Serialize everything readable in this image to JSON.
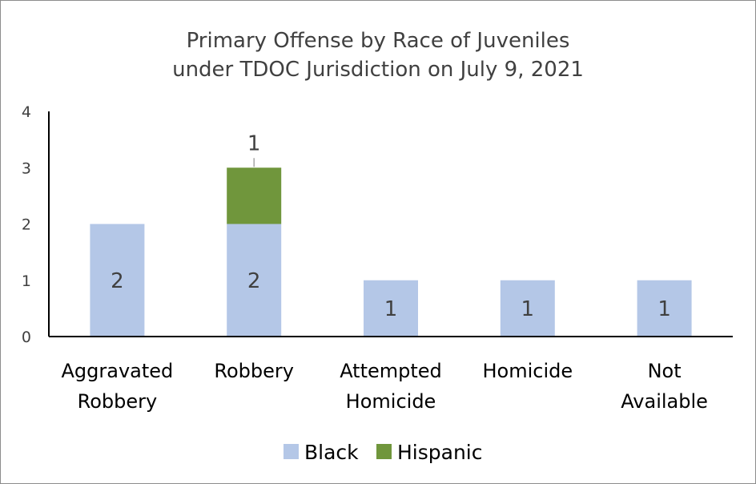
{
  "chart_data": {
    "type": "bar",
    "stacked": true,
    "title_lines": [
      "Primary Offense by Race of Juveniles",
      "under TDOC Jurisdiction on July 9, 2021"
    ],
    "categories": [
      [
        "Aggravated",
        "Robbery"
      ],
      [
        "Robbery"
      ],
      [
        "Attempted",
        "Homicide"
      ],
      [
        "Homicide"
      ],
      [
        "Not",
        "Available"
      ]
    ],
    "series": [
      {
        "name": "Black",
        "color": "#b4c7e7",
        "values": [
          2,
          2,
          1,
          1,
          1
        ]
      },
      {
        "name": "Hispanic",
        "color": "#70963c",
        "values": [
          0,
          1,
          0,
          0,
          0
        ]
      }
    ],
    "ylim": [
      0,
      4
    ],
    "yticks": [
      "0",
      "1",
      "2",
      "3",
      "4"
    ],
    "legend_position": "bottom",
    "grid": false
  }
}
